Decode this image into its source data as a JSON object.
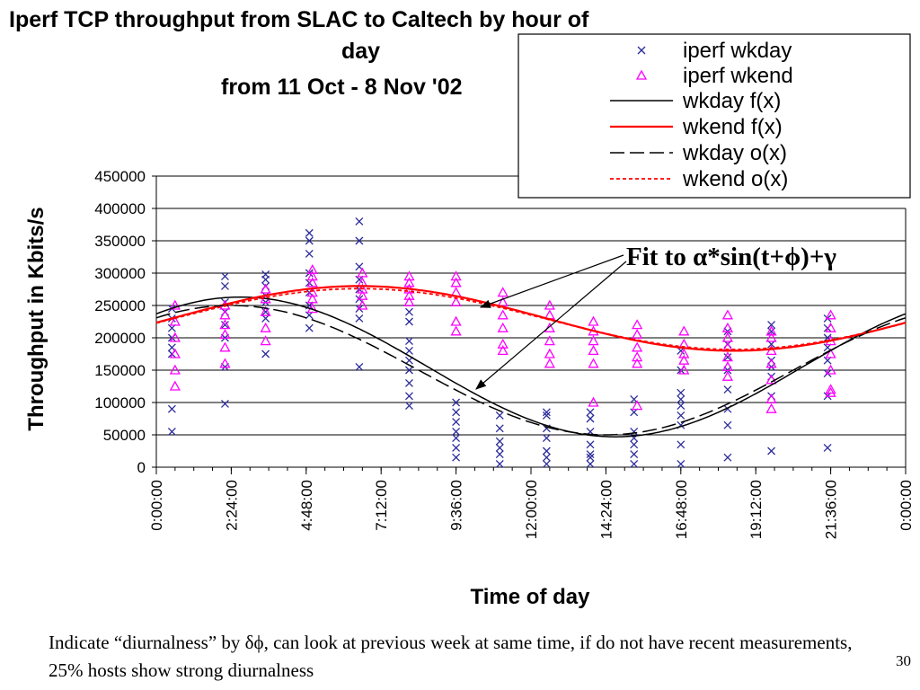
{
  "title": {
    "line1": "Iperf TCP throughput from SLAC to Caltech by hour of",
    "line2": "day",
    "line3": "from 11 Oct - 8 Nov '02"
  },
  "annotation": "Fit to α*sin(t+ϕ)+γ",
  "footer_text": "Indicate “diurnalness” by δϕ, can look at previous week at same time, if do not have recent measurements, 25% hosts show strong diurnalness",
  "page_number": "30",
  "colors": {
    "wkday_marker": "#2b2b9a",
    "wkend_marker": "#ff00ff",
    "wkday_fit": "#000000",
    "wkend_fit": "#ff0000",
    "grid": "#000000"
  },
  "chart_data": {
    "type": "scatter",
    "xlabel": "Time of day",
    "ylabel": "Throughput in Kbits/s",
    "xlim": [
      0,
      24
    ],
    "ylim": [
      0,
      450000
    ],
    "grid": true,
    "legend_position": "top-right",
    "y_ticks": [
      "0",
      "50000",
      "100000",
      "150000",
      "200000",
      "250000",
      "300000",
      "350000",
      "400000",
      "450000"
    ],
    "y_tick_values": [
      0,
      50000,
      100000,
      150000,
      200000,
      250000,
      300000,
      350000,
      400000,
      450000
    ],
    "x_ticks": [
      "0:00:00",
      "2:24:00",
      "4:48:00",
      "7:12:00",
      "9:36:00",
      "12:00:00",
      "14:24:00",
      "16:48:00",
      "19:12:00",
      "21:36:00",
      "0:00:00"
    ],
    "x_tick_values": [
      0,
      2.4,
      4.8,
      7.2,
      9.6,
      12,
      14.4,
      16.8,
      19.2,
      21.6,
      24
    ],
    "legend": [
      "iperf wkday",
      "iperf wkend",
      "wkday f(x)",
      "wkend f(x)",
      "wkday o(x)",
      "wkend o(x)"
    ],
    "series": [
      {
        "name": "iperf wkday",
        "kind": "marker-x",
        "points": [
          [
            0.5,
            55000
          ],
          [
            0.5,
            90000
          ],
          [
            0.5,
            175000
          ],
          [
            0.5,
            185000
          ],
          [
            0.5,
            200000
          ],
          [
            0.5,
            215000
          ],
          [
            0.5,
            230000
          ],
          [
            0.5,
            245000
          ],
          [
            2.2,
            98000
          ],
          [
            2.2,
            155000
          ],
          [
            2.2,
            200000
          ],
          [
            2.2,
            220000
          ],
          [
            2.2,
            240000
          ],
          [
            2.2,
            255000
          ],
          [
            2.2,
            280000
          ],
          [
            2.2,
            295000
          ],
          [
            3.5,
            175000
          ],
          [
            3.5,
            230000
          ],
          [
            3.5,
            240000
          ],
          [
            3.5,
            255000
          ],
          [
            3.5,
            265000
          ],
          [
            3.5,
            280000
          ],
          [
            3.5,
            290000
          ],
          [
            3.5,
            298000
          ],
          [
            4.9,
            215000
          ],
          [
            4.9,
            235000
          ],
          [
            4.9,
            250000
          ],
          [
            4.9,
            270000
          ],
          [
            4.9,
            285000
          ],
          [
            4.9,
            300000
          ],
          [
            4.9,
            330000
          ],
          [
            4.9,
            350000
          ],
          [
            4.9,
            362000
          ],
          [
            6.5,
            155000
          ],
          [
            6.5,
            230000
          ],
          [
            6.5,
            245000
          ],
          [
            6.5,
            260000
          ],
          [
            6.5,
            275000
          ],
          [
            6.5,
            290000
          ],
          [
            6.5,
            310000
          ],
          [
            6.5,
            350000
          ],
          [
            6.5,
            380000
          ],
          [
            8.1,
            95000
          ],
          [
            8.1,
            110000
          ],
          [
            8.1,
            130000
          ],
          [
            8.1,
            150000
          ],
          [
            8.1,
            165000
          ],
          [
            8.1,
            180000
          ],
          [
            8.1,
            195000
          ],
          [
            8.1,
            225000
          ],
          [
            8.1,
            240000
          ],
          [
            9.6,
            15000
          ],
          [
            9.6,
            30000
          ],
          [
            9.6,
            45000
          ],
          [
            9.6,
            55000
          ],
          [
            9.6,
            70000
          ],
          [
            9.6,
            85000
          ],
          [
            9.6,
            100000
          ],
          [
            11.0,
            5000
          ],
          [
            11.0,
            20000
          ],
          [
            11.0,
            30000
          ],
          [
            11.0,
            40000
          ],
          [
            11.0,
            60000
          ],
          [
            11.0,
            80000
          ],
          [
            12.5,
            5000
          ],
          [
            12.5,
            15000
          ],
          [
            12.5,
            25000
          ],
          [
            12.5,
            45000
          ],
          [
            12.5,
            60000
          ],
          [
            12.5,
            80000
          ],
          [
            12.5,
            85000
          ],
          [
            13.9,
            5000
          ],
          [
            13.9,
            15000
          ],
          [
            13.9,
            20000
          ],
          [
            13.9,
            35000
          ],
          [
            13.9,
            55000
          ],
          [
            13.9,
            75000
          ],
          [
            13.9,
            85000
          ],
          [
            15.3,
            5000
          ],
          [
            15.3,
            20000
          ],
          [
            15.3,
            35000
          ],
          [
            15.3,
            45000
          ],
          [
            15.3,
            55000
          ],
          [
            15.3,
            85000
          ],
          [
            15.3,
            105000
          ],
          [
            16.8,
            5000
          ],
          [
            16.8,
            35000
          ],
          [
            16.8,
            65000
          ],
          [
            16.8,
            80000
          ],
          [
            16.8,
            95000
          ],
          [
            16.8,
            105000
          ],
          [
            16.8,
            115000
          ],
          [
            16.8,
            150000
          ],
          [
            16.8,
            180000
          ],
          [
            18.3,
            15000
          ],
          [
            18.3,
            65000
          ],
          [
            18.3,
            90000
          ],
          [
            18.3,
            120000
          ],
          [
            18.3,
            150000
          ],
          [
            18.3,
            170000
          ],
          [
            18.3,
            190000
          ],
          [
            18.3,
            210000
          ],
          [
            19.7,
            25000
          ],
          [
            19.7,
            110000
          ],
          [
            19.7,
            140000
          ],
          [
            19.7,
            155000
          ],
          [
            19.7,
            165000
          ],
          [
            19.7,
            190000
          ],
          [
            19.7,
            210000
          ],
          [
            19.7,
            220000
          ],
          [
            21.5,
            30000
          ],
          [
            21.5,
            110000
          ],
          [
            21.5,
            145000
          ],
          [
            21.5,
            165000
          ],
          [
            21.5,
            185000
          ],
          [
            21.5,
            200000
          ],
          [
            21.5,
            215000
          ],
          [
            21.5,
            230000
          ]
        ]
      },
      {
        "name": "iperf wkend",
        "kind": "marker-triangle",
        "points": [
          [
            0.6,
            125000
          ],
          [
            0.6,
            150000
          ],
          [
            0.6,
            175000
          ],
          [
            0.6,
            200000
          ],
          [
            0.6,
            225000
          ],
          [
            0.6,
            250000
          ],
          [
            2.2,
            160000
          ],
          [
            2.2,
            185000
          ],
          [
            2.2,
            205000
          ],
          [
            2.2,
            220000
          ],
          [
            2.2,
            235000
          ],
          [
            2.2,
            250000
          ],
          [
            3.5,
            195000
          ],
          [
            3.5,
            215000
          ],
          [
            3.5,
            240000
          ],
          [
            3.5,
            260000
          ],
          [
            3.5,
            275000
          ],
          [
            5.0,
            245000
          ],
          [
            5.0,
            260000
          ],
          [
            5.0,
            270000
          ],
          [
            5.0,
            285000
          ],
          [
            5.0,
            295000
          ],
          [
            5.0,
            305000
          ],
          [
            6.6,
            250000
          ],
          [
            6.6,
            265000
          ],
          [
            6.6,
            275000
          ],
          [
            6.6,
            285000
          ],
          [
            6.6,
            300000
          ],
          [
            8.1,
            255000
          ],
          [
            8.1,
            265000
          ],
          [
            8.1,
            275000
          ],
          [
            8.1,
            285000
          ],
          [
            8.1,
            295000
          ],
          [
            9.6,
            210000
          ],
          [
            9.6,
            225000
          ],
          [
            9.6,
            255000
          ],
          [
            9.6,
            270000
          ],
          [
            9.6,
            285000
          ],
          [
            9.6,
            295000
          ],
          [
            11.1,
            180000
          ],
          [
            11.1,
            190000
          ],
          [
            11.1,
            215000
          ],
          [
            11.1,
            235000
          ],
          [
            11.1,
            255000
          ],
          [
            11.1,
            270000
          ],
          [
            12.6,
            160000
          ],
          [
            12.6,
            175000
          ],
          [
            12.6,
            195000
          ],
          [
            12.6,
            215000
          ],
          [
            12.6,
            235000
          ],
          [
            12.6,
            250000
          ],
          [
            14.0,
            100000
          ],
          [
            14.0,
            160000
          ],
          [
            14.0,
            180000
          ],
          [
            14.0,
            195000
          ],
          [
            14.0,
            210000
          ],
          [
            14.0,
            225000
          ],
          [
            15.4,
            95000
          ],
          [
            15.4,
            160000
          ],
          [
            15.4,
            170000
          ],
          [
            15.4,
            185000
          ],
          [
            15.4,
            205000
          ],
          [
            15.4,
            220000
          ],
          [
            16.9,
            150000
          ],
          [
            16.9,
            165000
          ],
          [
            16.9,
            175000
          ],
          [
            16.9,
            190000
          ],
          [
            16.9,
            210000
          ],
          [
            18.3,
            140000
          ],
          [
            18.3,
            155000
          ],
          [
            18.3,
            170000
          ],
          [
            18.3,
            185000
          ],
          [
            18.3,
            200000
          ],
          [
            18.3,
            215000
          ],
          [
            18.3,
            235000
          ],
          [
            19.7,
            90000
          ],
          [
            19.7,
            105000
          ],
          [
            19.7,
            135000
          ],
          [
            19.7,
            160000
          ],
          [
            19.7,
            180000
          ],
          [
            19.7,
            200000
          ],
          [
            19.7,
            210000
          ],
          [
            21.6,
            115000
          ],
          [
            21.6,
            120000
          ],
          [
            21.6,
            150000
          ],
          [
            21.6,
            175000
          ],
          [
            21.6,
            195000
          ],
          [
            21.6,
            215000
          ],
          [
            21.6,
            235000
          ]
        ]
      },
      {
        "name": "wkday f(x)",
        "kind": "line-solid",
        "amplitude": 108000,
        "offset": 155000,
        "peak_hour": 2.7
      },
      {
        "name": "wkend f(x)",
        "kind": "line-solid-red",
        "amplitude": 50000,
        "offset": 230000,
        "peak_hour": 6.5
      },
      {
        "name": "wkday o(x)",
        "kind": "line-dashed",
        "amplitude": 100000,
        "offset": 150000,
        "peak_hour": 2.4
      },
      {
        "name": "wkend o(x)",
        "kind": "line-dotted-red",
        "amplitude": 47000,
        "offset": 229000,
        "peak_hour": 6.5
      }
    ]
  }
}
